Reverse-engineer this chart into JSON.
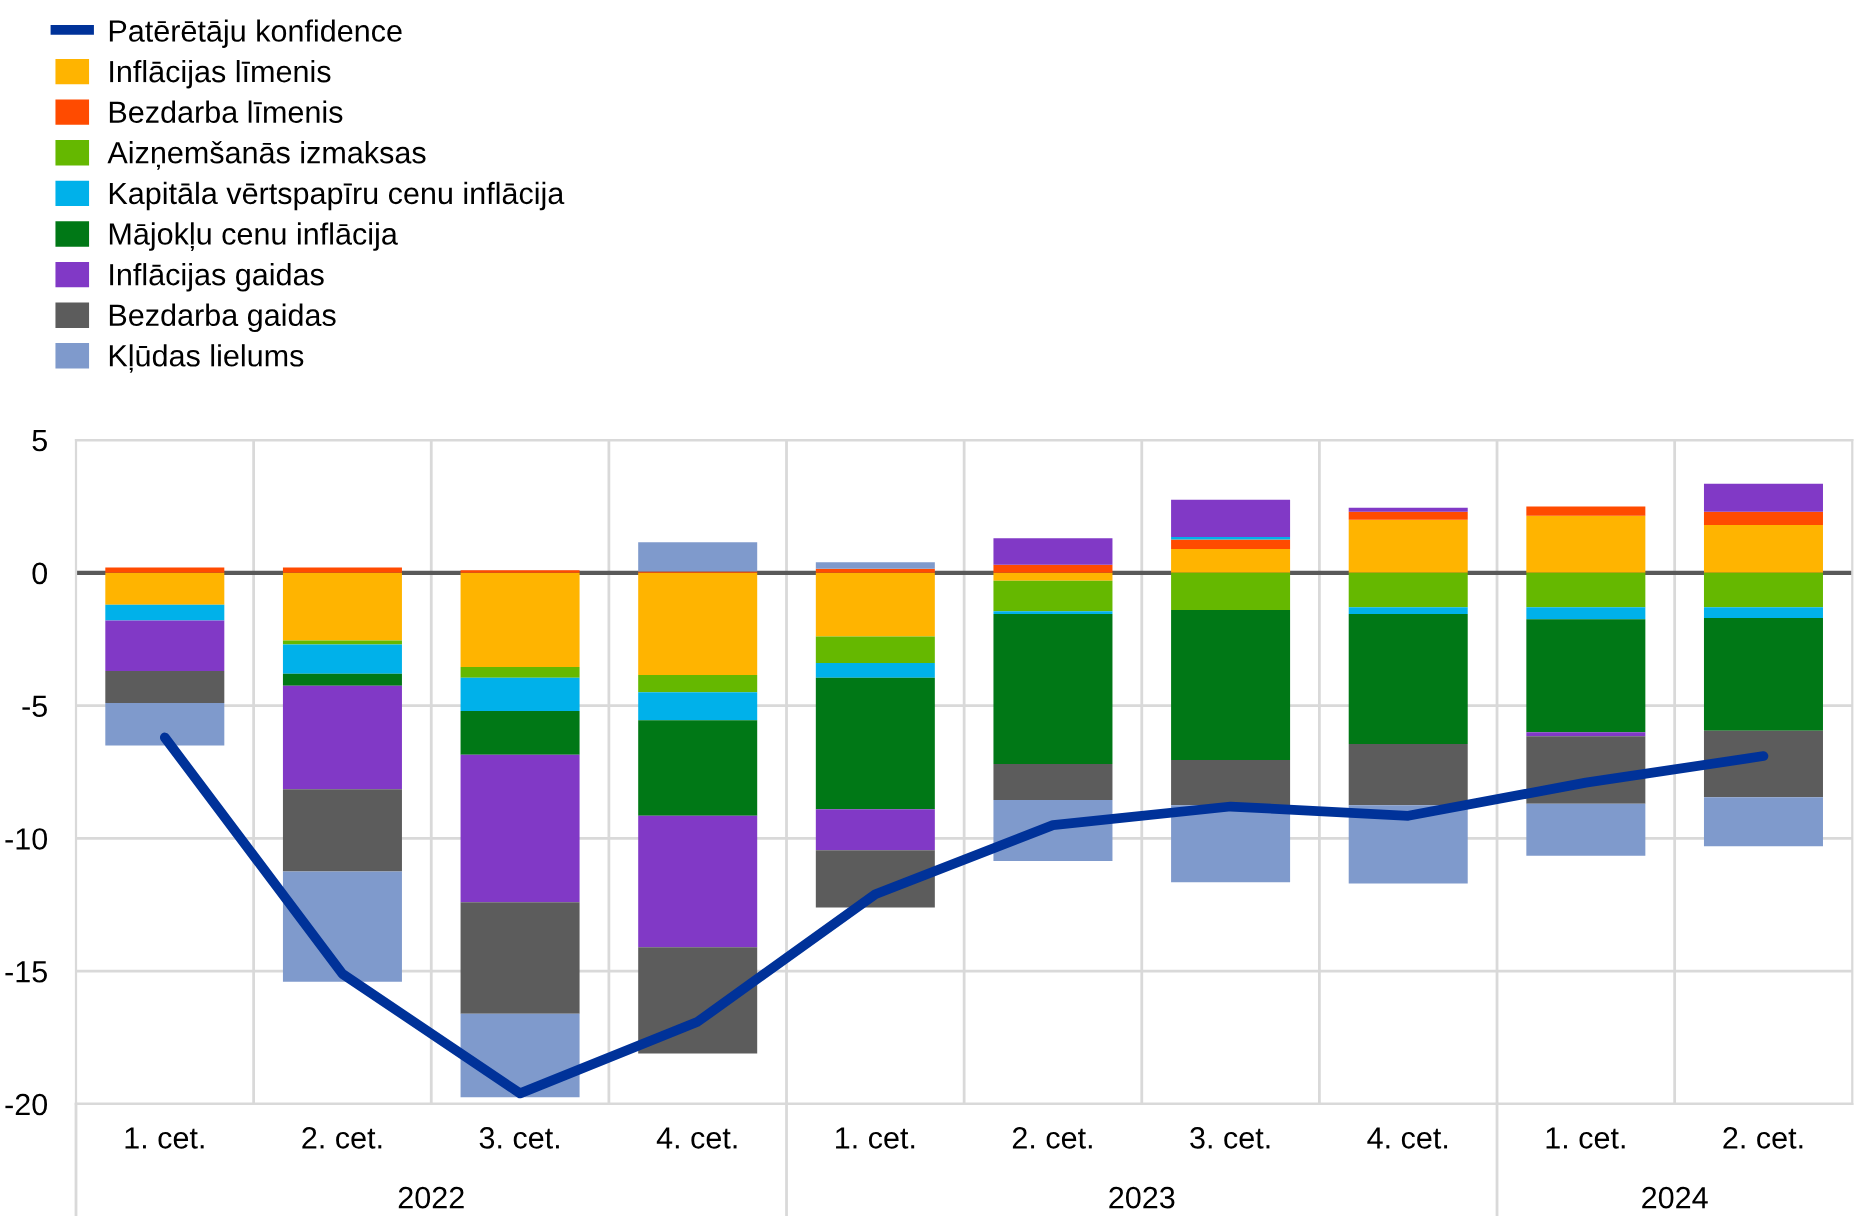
{
  "chart_data": {
    "type": "bar",
    "stacked": true,
    "categories": [
      "1. cet.",
      "2. cet.",
      "3. cet.",
      "4. cet.",
      "1. cet.",
      "2. cet.",
      "3. cet.",
      "4. cet.",
      "1. cet.",
      "2. cet."
    ],
    "annotations": [
      "2022",
      "2023",
      "2024"
    ],
    "series": [
      {
        "name": "Patērētāju konfidence",
        "type": "line",
        "color": "#003299",
        "values": [
          -6.2,
          -15.1,
          -19.6,
          -16.9,
          -12.1,
          -9.5,
          -8.8,
          -9.15,
          -7.9,
          -6.9
        ]
      },
      {
        "name": "Inflācijas līmenis",
        "color": "#ffb400",
        "values": [
          -1.2,
          -2.55,
          -3.55,
          -3.85,
          -2.4,
          -0.3,
          0.9,
          2.0,
          2.15,
          1.8
        ]
      },
      {
        "name": "Bezdarba līmenis",
        "color": "#ff4b00",
        "values": [
          0.2,
          0.2,
          0.1,
          0.05,
          0.15,
          0.3,
          0.35,
          0.3,
          0.35,
          0.5
        ]
      },
      {
        "name": "Aizņemšanās izmaksas",
        "color": "#65b800",
        "values": [
          null,
          -0.15,
          -0.4,
          -0.65,
          -1.0,
          -1.15,
          -1.4,
          -1.3,
          -1.3,
          -1.3
        ]
      },
      {
        "name": "Kapitāla vērtspapīru cenu inflācija",
        "color": "#00b1ea",
        "values": [
          -0.6,
          -1.1,
          -1.25,
          -1.05,
          -0.55,
          -0.1,
          0.1,
          -0.25,
          -0.45,
          -0.4
        ]
      },
      {
        "name": "Mājokļu cenu inflācija",
        "color": "#007816",
        "values": [
          null,
          -0.45,
          -1.65,
          -3.6,
          -4.95,
          -5.65,
          -5.65,
          -4.9,
          -4.25,
          -4.25
        ]
      },
      {
        "name": "Inflācijas gaidas",
        "color": "#8139c6",
        "values": [
          -1.9,
          -3.9,
          -5.55,
          -4.95,
          -1.55,
          1.0,
          1.4,
          0.15,
          -0.15,
          1.05
        ]
      },
      {
        "name": "Bezdarba gaidas",
        "color": "#5c5c5c",
        "values": [
          -1.2,
          -3.1,
          -4.2,
          -4.0,
          -2.15,
          -1.35,
          -1.7,
          -2.3,
          -2.55,
          -2.5
        ]
      },
      {
        "name": "Kļūdas lielums",
        "color": "#7f9acc",
        "values": [
          -1.6,
          -4.15,
          -3.15,
          1.1,
          0.25,
          -2.3,
          -2.9,
          -2.95,
          -1.95,
          -1.85
        ]
      }
    ],
    "ylim": [
      -20,
      5
    ],
    "yticks": [
      -20,
      -15,
      -10,
      -5,
      0,
      5
    ],
    "ref_lines": [
      {
        "axis": "y",
        "value": 0,
        "color": "#595959"
      }
    ],
    "grid": true,
    "legend": "top left"
  }
}
